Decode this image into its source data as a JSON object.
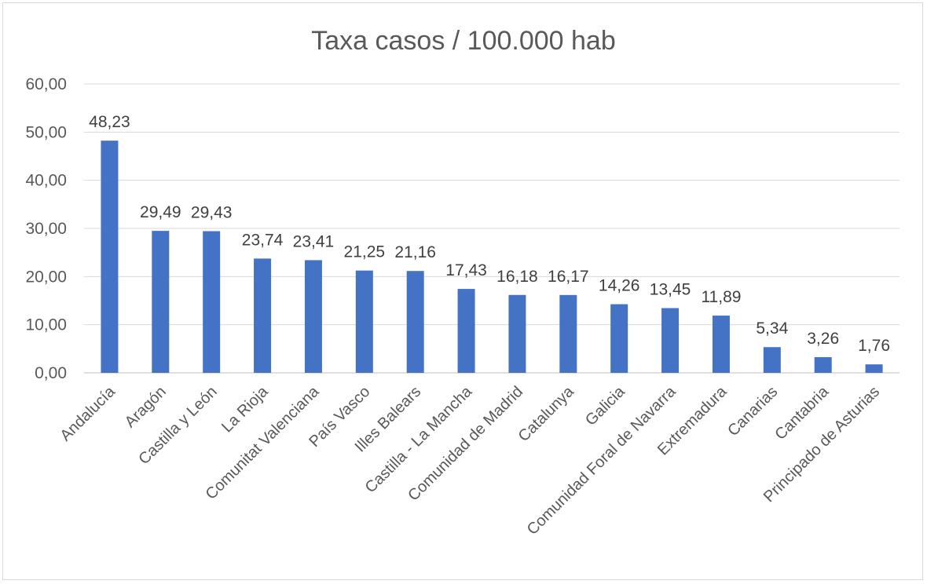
{
  "chart_data": {
    "type": "bar",
    "title": "Taxa casos / 100.000 hab",
    "xlabel": "",
    "ylabel": "",
    "ylim": [
      0,
      60
    ],
    "yticks": [
      0,
      10,
      20,
      30,
      40,
      50,
      60
    ],
    "ytick_labels": [
      "0,00",
      "10,00",
      "20,00",
      "30,00",
      "40,00",
      "50,00",
      "60,00"
    ],
    "grid": true,
    "legend": "none",
    "bar_color": "#4472c4",
    "categories": [
      "Andalucía",
      "Aragón",
      "Castilla y León",
      "La Rioja",
      "Comunitat Valenciana",
      "País Vasco",
      "Illes Balears",
      "Castilla - La Mancha",
      "Comunidad de Madrid",
      "Catalunya",
      "Galicia",
      "Comunidad Foral de Navarra",
      "Extremadura",
      "Canarias",
      "Cantabria",
      "Principado de Asturias"
    ],
    "values": [
      48.23,
      29.49,
      29.43,
      23.74,
      23.41,
      21.25,
      21.16,
      17.43,
      16.18,
      16.17,
      14.26,
      13.45,
      11.89,
      5.34,
      3.26,
      1.76
    ],
    "data_labels": [
      "48,23",
      "29,49",
      "29,43",
      "23,74",
      "23,41",
      "21,25",
      "21,16",
      "17,43",
      "16,18",
      "16,17",
      "14,26",
      "13,45",
      "11,89",
      "5,34",
      "3,26",
      "1,76"
    ]
  }
}
